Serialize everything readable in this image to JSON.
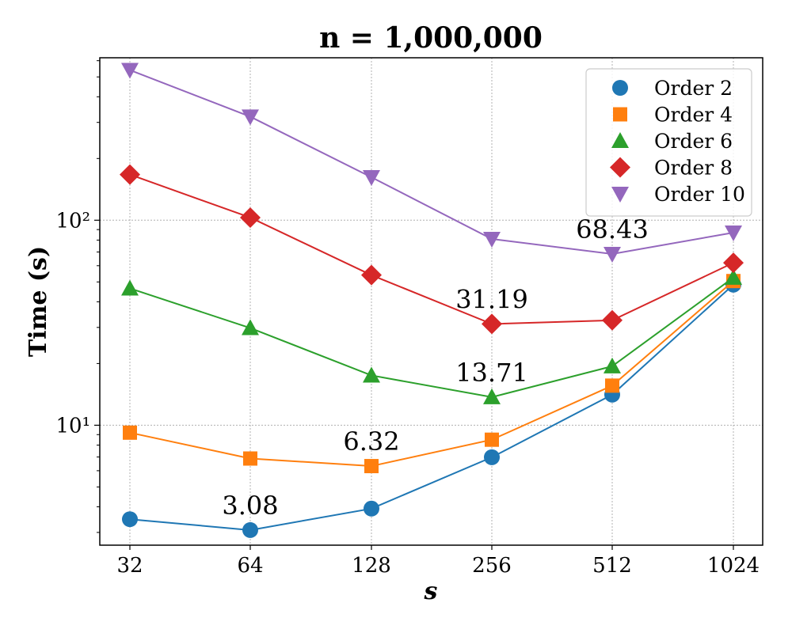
{
  "chart_data": {
    "type": "line",
    "title": "n = 1,000,000",
    "xlabel": "s",
    "ylabel": "Time (s)",
    "xscale": "log2",
    "yscale": "log",
    "ylim": [
      2.6,
      620
    ],
    "grid": true,
    "legend_position": "top-right",
    "categories": [
      "32",
      "64",
      "128",
      "256",
      "512",
      "1024"
    ],
    "x": [
      32,
      64,
      128,
      256,
      512,
      1024
    ],
    "y_ticks": [
      {
        "value": 10,
        "label": "10¹"
      },
      {
        "value": 100,
        "label": "10²"
      }
    ],
    "series": [
      {
        "name": "Order 2",
        "color": "#1f77b4",
        "marker": "circle",
        "values": [
          3.48,
          3.08,
          3.92,
          6.98,
          14.1,
          48.5
        ]
      },
      {
        "name": "Order 4",
        "color": "#ff7f0e",
        "marker": "square",
        "values": [
          9.2,
          6.88,
          6.32,
          8.5,
          15.6,
          50.5
        ]
      },
      {
        "name": "Order 6",
        "color": "#2ca02c",
        "marker": "triangle-up",
        "values": [
          46.5,
          29.8,
          17.5,
          13.71,
          19.4,
          52.5
        ]
      },
      {
        "name": "Order 8",
        "color": "#d62728",
        "marker": "diamond",
        "values": [
          167,
          103,
          54,
          31.19,
          32.5,
          62
        ]
      },
      {
        "name": "Order 10",
        "color": "#9467bd",
        "marker": "triangle-down",
        "values": [
          540,
          320,
          162,
          81,
          68.43,
          87
        ]
      }
    ],
    "annotations": [
      {
        "text": "3.08",
        "x": 64,
        "y": 3.08
      },
      {
        "text": "6.32",
        "x": 128,
        "y": 6.32
      },
      {
        "text": "13.71",
        "x": 256,
        "y": 13.71
      },
      {
        "text": "31.19",
        "x": 256,
        "y": 31.19
      },
      {
        "text": "68.43",
        "x": 512,
        "y": 68.43
      }
    ]
  }
}
